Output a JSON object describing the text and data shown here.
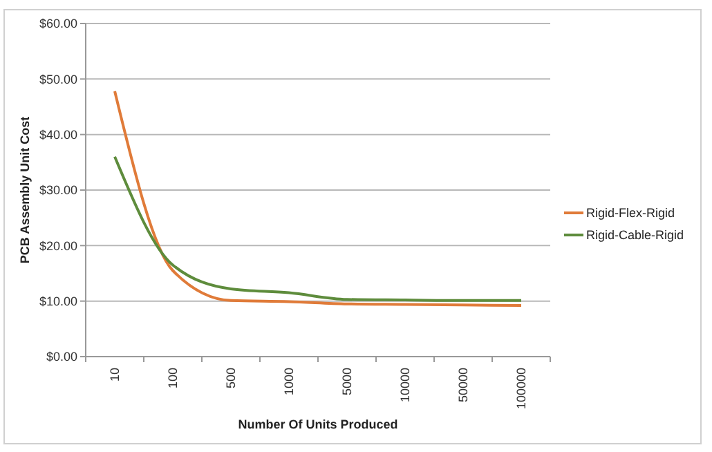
{
  "chart_data": {
    "type": "line",
    "xlabel": "Number Of Units Produced",
    "ylabel": "PCB Assembly Unit Cost",
    "categories": [
      "10",
      "100",
      "500",
      "1000",
      "5000",
      "10000",
      "50000",
      "100000"
    ],
    "series": [
      {
        "name": "Rigid-Flex-Rigid",
        "color": "#e07b39",
        "values": [
          47.8,
          15.5,
          10.1,
          9.9,
          9.5,
          9.4,
          9.3,
          9.2
        ]
      },
      {
        "name": "Rigid-Cable-Rigid",
        "color": "#5e8c3c",
        "values": [
          36,
          16.5,
          12.2,
          11.5,
          10.3,
          10.2,
          10.1,
          10.1
        ]
      }
    ],
    "ylim": [
      0,
      60
    ],
    "yticks": [
      {
        "value": 0,
        "label": "$0.00"
      },
      {
        "value": 10,
        "label": "$10.00"
      },
      {
        "value": 20,
        "label": "$20.00"
      },
      {
        "value": 30,
        "label": "$30.00"
      },
      {
        "value": 40,
        "label": "$40.00"
      },
      {
        "value": 50,
        "label": "$50.00"
      },
      {
        "value": 60,
        "label": "$60.00"
      }
    ],
    "grid": "y",
    "legend": "right",
    "marker": "none",
    "line_style": "solid"
  }
}
